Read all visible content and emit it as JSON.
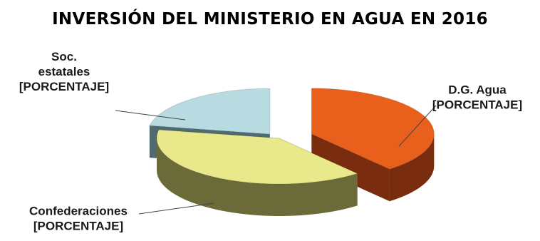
{
  "chart_data": {
    "type": "pie",
    "title": "INVERSIÓN DEL MINISTERIO EN AGUA EN 2016",
    "categories": [
      "D.G. Agua",
      "Confederaciones",
      "Soc. estatales"
    ],
    "values": [
      39,
      39,
      22
    ],
    "value_labels": [
      "[PORCENTAJE]",
      "[PORCENTAJE]",
      "[PORCENTAJE]"
    ],
    "three_d": true,
    "exploded": true,
    "colors": {
      "D.G. Agua": "#e8601c",
      "Confederaciones": "#e9e98c",
      "Soc. estatales": "#b7dbe0"
    },
    "side_colors": {
      "D.G. Agua": "#7a2c0e",
      "Confederaciones": "#6b6b3a",
      "Soc. estatales": "#4f6b70"
    },
    "label_lines": [
      [
        "D.G. Agua",
        "[PORCENTAJE]"
      ],
      [
        "Confederaciones",
        "[PORCENTAJE]"
      ],
      [
        "Soc.",
        "estatales",
        "[PORCENTAJE]"
      ]
    ]
  }
}
